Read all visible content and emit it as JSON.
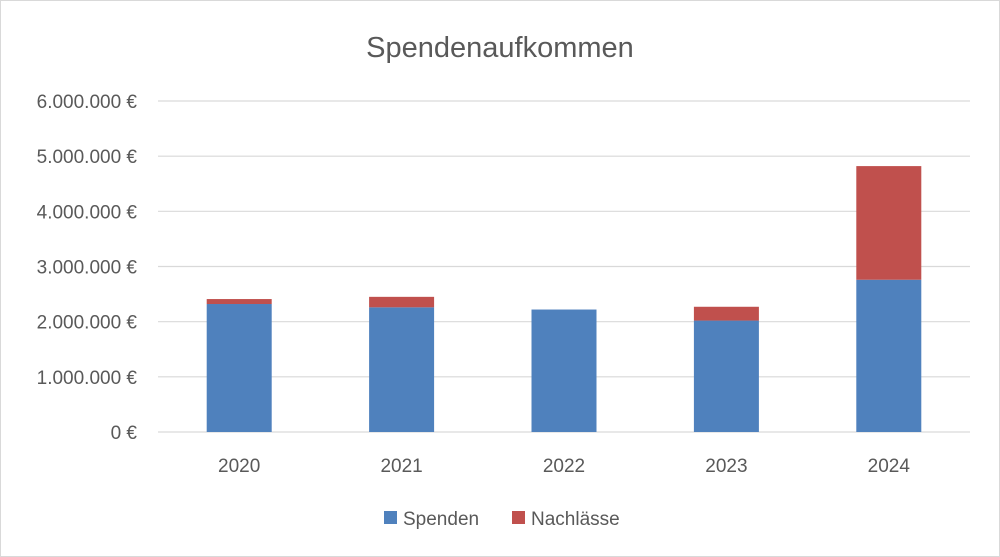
{
  "chart_data": {
    "type": "bar",
    "stacked": true,
    "title": "Spendenaufkommen",
    "xlabel": "",
    "ylabel": "",
    "categories": [
      "2020",
      "2021",
      "2022",
      "2023",
      "2024"
    ],
    "series": [
      {
        "name": "Spenden",
        "color": "#4f81bd",
        "values": [
          2320000,
          2260000,
          2220000,
          2020000,
          2760000
        ]
      },
      {
        "name": "Nachlässe",
        "color": "#c0504d",
        "values": [
          90000,
          190000,
          0,
          250000,
          2060000
        ]
      }
    ],
    "ylim": [
      0,
      6000000
    ],
    "yticks": [
      {
        "value": 0,
        "label": "0 €"
      },
      {
        "value": 1000000,
        "label": "1.000.000 €"
      },
      {
        "value": 2000000,
        "label": "2.000.000 €"
      },
      {
        "value": 3000000,
        "label": "3.000.000 €"
      },
      {
        "value": 4000000,
        "label": "4.000.000 €"
      },
      {
        "value": 5000000,
        "label": "5.000.000 €"
      },
      {
        "value": 6000000,
        "label": "6.000.000 €"
      }
    ],
    "grid": true,
    "gridline_color": "#d9d9d9",
    "text_color": "#595959",
    "legend_position": "bottom"
  }
}
